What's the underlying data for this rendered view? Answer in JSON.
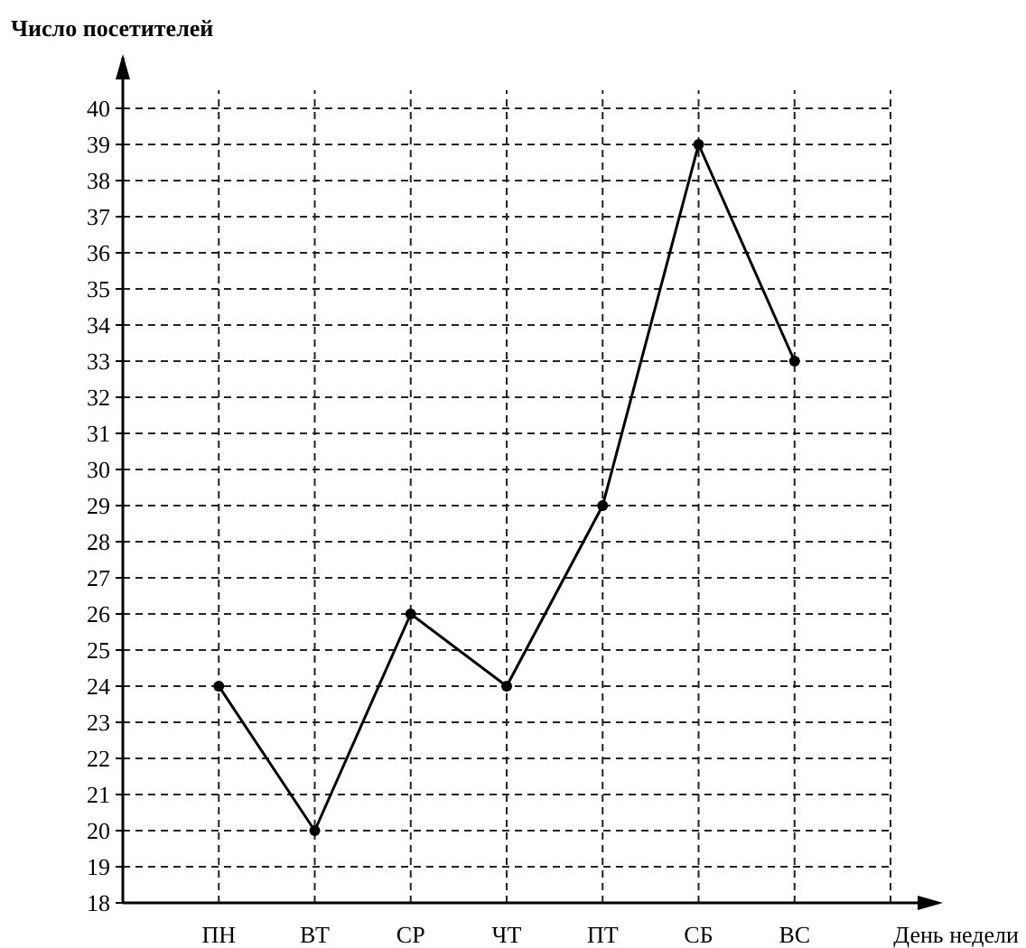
{
  "chart_data": {
    "type": "line",
    "ylabel": "Число посетителей",
    "xlabel": "День недели",
    "categories": [
      "ПН",
      "ВТ",
      "СР",
      "ЧТ",
      "ПТ",
      "СБ",
      "ВС"
    ],
    "series": [
      {
        "color": "#000000",
        "values": [
          24,
          20,
          26,
          24,
          29,
          39,
          33
        ]
      }
    ],
    "ylim": [
      18,
      40.5
    ],
    "yticks": [
      18,
      19,
      20,
      21,
      22,
      23,
      24,
      25,
      26,
      27,
      28,
      29,
      30,
      31,
      32,
      33,
      34,
      35,
      36,
      37,
      38,
      39,
      40
    ],
    "grid": true,
    "marker": "circle",
    "line_style": "solid"
  }
}
